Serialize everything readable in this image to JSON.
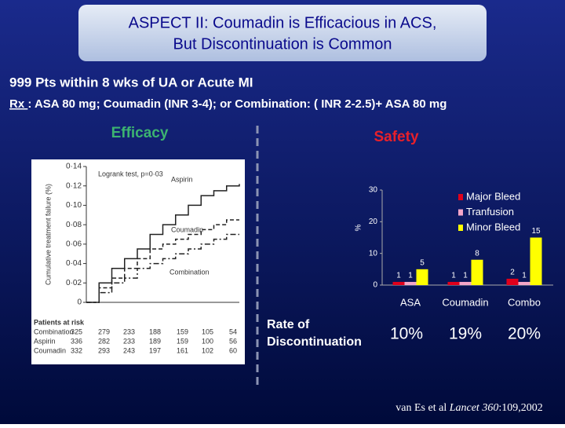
{
  "slide": {
    "title_lines": [
      "ASPECT II: Coumadin is Efficacious in ACS,",
      "But Discontinuation is Common"
    ],
    "subtitle": "999 Pts within 8 wks of UA or Acute MI",
    "rx_label": "Rx ",
    "rx_text": ": ASA 80 mg; Coumadin (INR 3-4); or  Combination: ( INR 2-2.5)+ ASA 80 mg",
    "efficacy": "Efficacy",
    "safety": "Safety",
    "discontinuation": {
      "label_lines": [
        "Rate of",
        "Discontinuation"
      ],
      "values": [
        "10%",
        "19%",
        "20%"
      ]
    },
    "citation": {
      "authors": "van Es et al ",
      "journal": "Lancet",
      "volume": " 360",
      "pages": ":109,2002"
    }
  },
  "chart_data": [
    {
      "type": "step",
      "ylabel": "Cumulative treatment failure (%)",
      "annotation": "Logrank test, p=0·03",
      "x": [
        0,
        0.5,
        1,
        1.5,
        2,
        2.5,
        3,
        3.5,
        4,
        4.5,
        5,
        5.5,
        6
      ],
      "xlim": [
        0,
        6
      ],
      "ylim": [
        0,
        0.14
      ],
      "yticks": [
        0,
        {
          "value": 0.02,
          "label": "0·02"
        },
        {
          "value": 0.04,
          "label": "0·04"
        },
        {
          "value": 0.06,
          "label": "0·06"
        },
        {
          "value": 0.08,
          "label": "0·08"
        },
        {
          "value": 0.1,
          "label": "0·10"
        },
        {
          "value": 0.12,
          "label": "0·12"
        },
        {
          "value": 0.14,
          "label": "0·14"
        }
      ],
      "series": [
        {
          "name": "Aspirin",
          "dash": "solid",
          "values": [
            0,
            0.02,
            0.035,
            0.045,
            0.055,
            0.07,
            0.08,
            0.09,
            0.1,
            0.11,
            0.115,
            0.12,
            0.122
          ]
        },
        {
          "name": "Coumadin",
          "dash": "dashed",
          "values": [
            0,
            0.015,
            0.025,
            0.035,
            0.045,
            0.055,
            0.06,
            0.065,
            0.07,
            0.075,
            0.08,
            0.085,
            0.085
          ]
        },
        {
          "name": "Combination",
          "dash": "dashdot",
          "values": [
            0,
            0.01,
            0.02,
            0.025,
            0.035,
            0.04,
            0.045,
            0.05,
            0.055,
            0.06,
            0.065,
            0.07,
            0.07
          ]
        }
      ],
      "risk_table": {
        "title": "Patients at risk",
        "rows": [
          {
            "name": "Combination",
            "values": [
              325,
              279,
              233,
              188,
              159,
              105,
              54
            ]
          },
          {
            "name": "Aspirin",
            "values": [
              336,
              282,
              233,
              189,
              159,
              100,
              56
            ]
          },
          {
            "name": "Coumadin",
            "values": [
              332,
              293,
              243,
              197,
              161,
              102,
              60
            ]
          }
        ]
      }
    },
    {
      "type": "bar",
      "ylabel": "%",
      "categories": [
        "ASA",
        "Coumadin",
        "Combo"
      ],
      "ylim": [
        0,
        30
      ],
      "yticks": [
        0,
        10,
        20,
        30
      ],
      "legend": "upper-right",
      "series": [
        {
          "name": "Major Bleed",
          "color": "#e0001b",
          "values": [
            1,
            1,
            2
          ]
        },
        {
          "name": "Tranfusion",
          "color": "#f4a6c8",
          "values": [
            1,
            1,
            1
          ]
        },
        {
          "name": "Minor Bleed",
          "color": "#ffff00",
          "values": [
            5,
            8,
            15
          ]
        }
      ]
    }
  ]
}
